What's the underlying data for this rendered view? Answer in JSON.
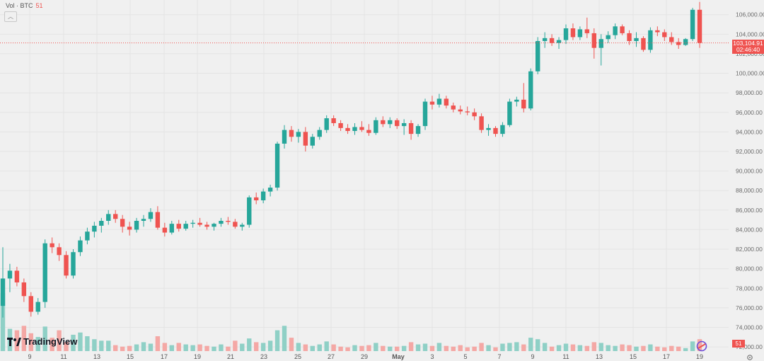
{
  "header": {
    "vol_label": "Vol · BTC",
    "vol_value": "51"
  },
  "brand": {
    "name": "TradingView"
  },
  "price_label": {
    "price": "103,104.91",
    "countdown": "02:46:40"
  },
  "vol_badge": "51",
  "colors": {
    "up": "#26a69a",
    "down": "#ef5350",
    "up_vol": "#8fd0c6",
    "down_vol": "#f4a8a5",
    "background": "#f0f0f0"
  },
  "icons": {
    "collapse": "chevron-up-icon",
    "replay": "replay-icon",
    "settings": "gear-icon"
  },
  "chart_data": {
    "type": "candlestick",
    "y_axis_ticks": [
      "106,000.00",
      "104,000.00",
      "102,000.00",
      "100,000.00",
      "98,000.00",
      "96,000.00",
      "94,000.00",
      "92,000.00",
      "90,000.00",
      "88,000.00",
      "86,000.00",
      "84,000.00",
      "82,000.00",
      "80,000.00",
      "78,000.00",
      "76,000.00",
      "74,000.00",
      "72,000.00"
    ],
    "x_axis_ticks": [
      {
        "label": "9",
        "bold": false
      },
      {
        "label": "11",
        "bold": false
      },
      {
        "label": "13",
        "bold": false
      },
      {
        "label": "15",
        "bold": false
      },
      {
        "label": "17",
        "bold": false
      },
      {
        "label": "19",
        "bold": false
      },
      {
        "label": "21",
        "bold": false
      },
      {
        "label": "23",
        "bold": false
      },
      {
        "label": "25",
        "bold": false
      },
      {
        "label": "27",
        "bold": false
      },
      {
        "label": "29",
        "bold": false
      },
      {
        "label": "May",
        "bold": true
      },
      {
        "label": "3",
        "bold": false
      },
      {
        "label": "5",
        "bold": false
      },
      {
        "label": "7",
        "bold": false
      },
      {
        "label": "9",
        "bold": false
      },
      {
        "label": "11",
        "bold": false
      },
      {
        "label": "13",
        "bold": false
      },
      {
        "label": "15",
        "bold": false
      },
      {
        "label": "17",
        "bold": false
      },
      {
        "label": "19",
        "bold": false
      }
    ],
    "ylim": [
      71500,
      107500
    ],
    "last_price": 103104.91,
    "ohlc": [
      [
        76200,
        82200,
        75000,
        79000
      ],
      [
        79000,
        80500,
        77600,
        79800
      ],
      [
        79800,
        80200,
        78200,
        78600
      ],
      [
        78600,
        79000,
        76600,
        77200
      ],
      [
        77200,
        77600,
        75100,
        75600
      ],
      [
        75600,
        77000,
        75300,
        76600
      ],
      [
        76600,
        83000,
        76000,
        82600
      ],
      [
        82600,
        83200,
        81600,
        82200
      ],
      [
        82200,
        82600,
        80800,
        81400
      ],
      [
        81400,
        81800,
        79000,
        79300
      ],
      [
        79300,
        82000,
        79000,
        81700
      ],
      [
        81700,
        83300,
        81300,
        82900
      ],
      [
        82900,
        84200,
        82500,
        83800
      ],
      [
        83800,
        84800,
        83200,
        84400
      ],
      [
        84400,
        85200,
        83700,
        84900
      ],
      [
        84900,
        86000,
        84500,
        85600
      ],
      [
        85600,
        86000,
        84700,
        85100
      ],
      [
        85100,
        85500,
        83700,
        84300
      ],
      [
        84300,
        84800,
        83400,
        84000
      ],
      [
        84000,
        85200,
        83700,
        84900
      ],
      [
        84900,
        85500,
        84300,
        85100
      ],
      [
        85100,
        86200,
        84800,
        85800
      ],
      [
        85800,
        86400,
        84000,
        84200
      ],
      [
        84200,
        84700,
        83300,
        83700
      ],
      [
        83700,
        84900,
        83500,
        84600
      ],
      [
        84600,
        85000,
        83800,
        84100
      ],
      [
        84100,
        84900,
        83900,
        84600
      ],
      [
        84600,
        85000,
        84200,
        84700
      ],
      [
        84700,
        85200,
        84300,
        84500
      ],
      [
        84500,
        84800,
        84000,
        84300
      ],
      [
        84300,
        84700,
        83900,
        84600
      ],
      [
        84600,
        85200,
        84300,
        84900
      ],
      [
        84900,
        85300,
        84500,
        84800
      ],
      [
        84800,
        85100,
        84100,
        84300
      ],
      [
        84300,
        84700,
        83900,
        84500
      ],
      [
        84500,
        87500,
        84200,
        87300
      ],
      [
        87300,
        87800,
        86600,
        87000
      ],
      [
        87000,
        88200,
        86700,
        87900
      ],
      [
        87900,
        88600,
        87400,
        88300
      ],
      [
        88300,
        93000,
        88000,
        92800
      ],
      [
        92800,
        94700,
        92300,
        94200
      ],
      [
        94200,
        94600,
        93000,
        93500
      ],
      [
        93500,
        94300,
        92900,
        94000
      ],
      [
        94000,
        94500,
        92000,
        92600
      ],
      [
        92600,
        93800,
        92300,
        93500
      ],
      [
        93500,
        94500,
        93200,
        94200
      ],
      [
        94200,
        95700,
        93900,
        95400
      ],
      [
        95400,
        95700,
        94600,
        94900
      ],
      [
        94900,
        95200,
        94100,
        94400
      ],
      [
        94400,
        94800,
        93800,
        94100
      ],
      [
        94100,
        94900,
        93700,
        94500
      ],
      [
        94500,
        95100,
        94000,
        94200
      ],
      [
        94200,
        94800,
        93600,
        93900
      ],
      [
        93900,
        95500,
        93700,
        95200
      ],
      [
        95200,
        95600,
        94500,
        94800
      ],
      [
        94800,
        95500,
        94400,
        95200
      ],
      [
        95200,
        95400,
        94300,
        94600
      ],
      [
        94600,
        95300,
        93700,
        94900
      ],
      [
        94900,
        95200,
        93200,
        93800
      ],
      [
        93800,
        94800,
        93500,
        94600
      ],
      [
        94600,
        97400,
        94200,
        97100
      ],
      [
        97100,
        97700,
        96300,
        96800
      ],
      [
        96800,
        97900,
        96500,
        97400
      ],
      [
        97400,
        97700,
        96400,
        96700
      ],
      [
        96700,
        97000,
        96000,
        96300
      ],
      [
        96300,
        96700,
        95800,
        96100
      ],
      [
        96100,
        96600,
        95700,
        96000
      ],
      [
        96000,
        96400,
        95200,
        95600
      ],
      [
        95600,
        95900,
        93900,
        94200
      ],
      [
        94200,
        94800,
        93600,
        94400
      ],
      [
        94400,
        94600,
        93500,
        93800
      ],
      [
        93800,
        95000,
        93500,
        94700
      ],
      [
        94700,
        97400,
        94500,
        97100
      ],
      [
        97100,
        97600,
        96600,
        97300
      ],
      [
        97300,
        99000,
        96000,
        96400
      ],
      [
        96400,
        100500,
        96200,
        100200
      ],
      [
        100200,
        103700,
        99900,
        103300
      ],
      [
        103300,
        104200,
        102600,
        103600
      ],
      [
        103600,
        104000,
        102800,
        103100
      ],
      [
        103100,
        103700,
        102500,
        103400
      ],
      [
        103400,
        105000,
        103000,
        104600
      ],
      [
        104600,
        105100,
        103400,
        103700
      ],
      [
        103700,
        104800,
        103400,
        104500
      ],
      [
        104500,
        105700,
        103600,
        104100
      ],
      [
        104100,
        104600,
        101500,
        102600
      ],
      [
        102600,
        104000,
        100800,
        103500
      ],
      [
        103500,
        104300,
        103100,
        103900
      ],
      [
        103900,
        105100,
        103500,
        104800
      ],
      [
        104800,
        105000,
        103900,
        104100
      ],
      [
        104100,
        104400,
        102900,
        103300
      ],
      [
        103300,
        104200,
        102700,
        103600
      ],
      [
        103600,
        103800,
        102200,
        102400
      ],
      [
        102400,
        104700,
        102100,
        104400
      ],
      [
        104400,
        104800,
        103800,
        104200
      ],
      [
        104200,
        104500,
        103300,
        103700
      ],
      [
        103700,
        104200,
        102900,
        103200
      ],
      [
        103200,
        103600,
        102500,
        102900
      ],
      [
        102900,
        103600,
        102800,
        103500
      ],
      [
        103500,
        106700,
        103300,
        106500
      ],
      [
        106500,
        107300,
        102600,
        103105
      ]
    ],
    "volume": [
      78,
      30,
      28,
      34,
      24,
      19,
      33,
      18,
      28,
      12,
      22,
      25,
      20,
      16,
      14,
      14,
      8,
      6,
      7,
      9,
      12,
      10,
      20,
      11,
      8,
      11,
      9,
      8,
      9,
      7,
      6,
      9,
      6,
      14,
      10,
      17,
      12,
      11,
      14,
      28,
      34,
      18,
      11,
      9,
      7,
      9,
      13,
      9,
      6,
      5,
      8,
      7,
      8,
      11,
      7,
      6,
      6,
      7,
      12,
      9,
      10,
      7,
      11,
      7,
      6,
      8,
      5,
      6,
      11,
      8,
      5,
      10,
      11,
      12,
      9,
      18,
      16,
      11,
      6,
      8,
      10,
      9,
      8,
      7,
      12,
      11,
      8,
      7,
      9,
      8,
      6,
      7,
      9,
      6,
      5,
      7,
      6,
      4,
      13,
      16
    ],
    "volume_max": 80
  }
}
